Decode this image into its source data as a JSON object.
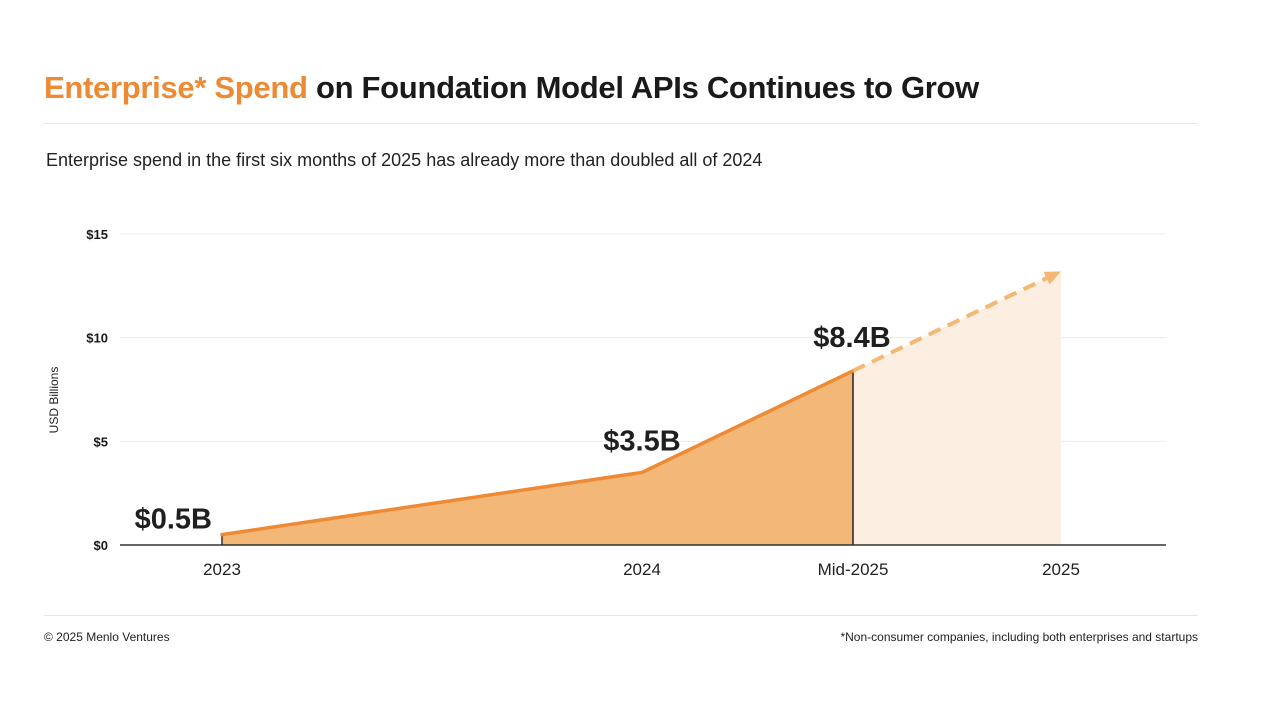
{
  "header": {
    "title_accent": "Enterprise* Spend",
    "title_rest": " on Foundation Model APIs Continues to Grow",
    "subtitle": "Enterprise spend in the first six months of 2025 has already more than doubled all of 2024"
  },
  "footer": {
    "copyright": "© 2025 Menlo Ventures",
    "footnote": "*Non-consumer companies, including both enterprises and startups"
  },
  "colors": {
    "accent": "#ee8a34",
    "area": "#f3b778",
    "projection_area": "#fcefe1",
    "projection_line": "#f5b774"
  },
  "chart_data": {
    "type": "area",
    "title": "Enterprise* Spend on Foundation Model APIs Continues to Grow",
    "ylabel": "USD Billions",
    "xlabel": "",
    "ylim": [
      0,
      15
    ],
    "yticks": [
      0,
      5,
      10,
      15
    ],
    "ytick_labels": [
      "$0",
      "$5",
      "$10",
      "$15"
    ],
    "grid": true,
    "categories": [
      "2023",
      "2024",
      "Mid-2025",
      "2025"
    ],
    "series": [
      {
        "name": "Enterprise spend",
        "style": "solid",
        "points": [
          {
            "x": "2023",
            "value": 0.5,
            "label": "$0.5B"
          },
          {
            "x": "2024",
            "value": 3.5,
            "label": "$3.5B"
          },
          {
            "x": "Mid-2025",
            "value": 8.4,
            "label": "$8.4B"
          }
        ]
      },
      {
        "name": "Projection",
        "style": "dashed-arrow",
        "points": [
          {
            "x": "Mid-2025",
            "value": 8.4
          },
          {
            "x": "2025",
            "value": 13.2
          }
        ]
      }
    ]
  }
}
